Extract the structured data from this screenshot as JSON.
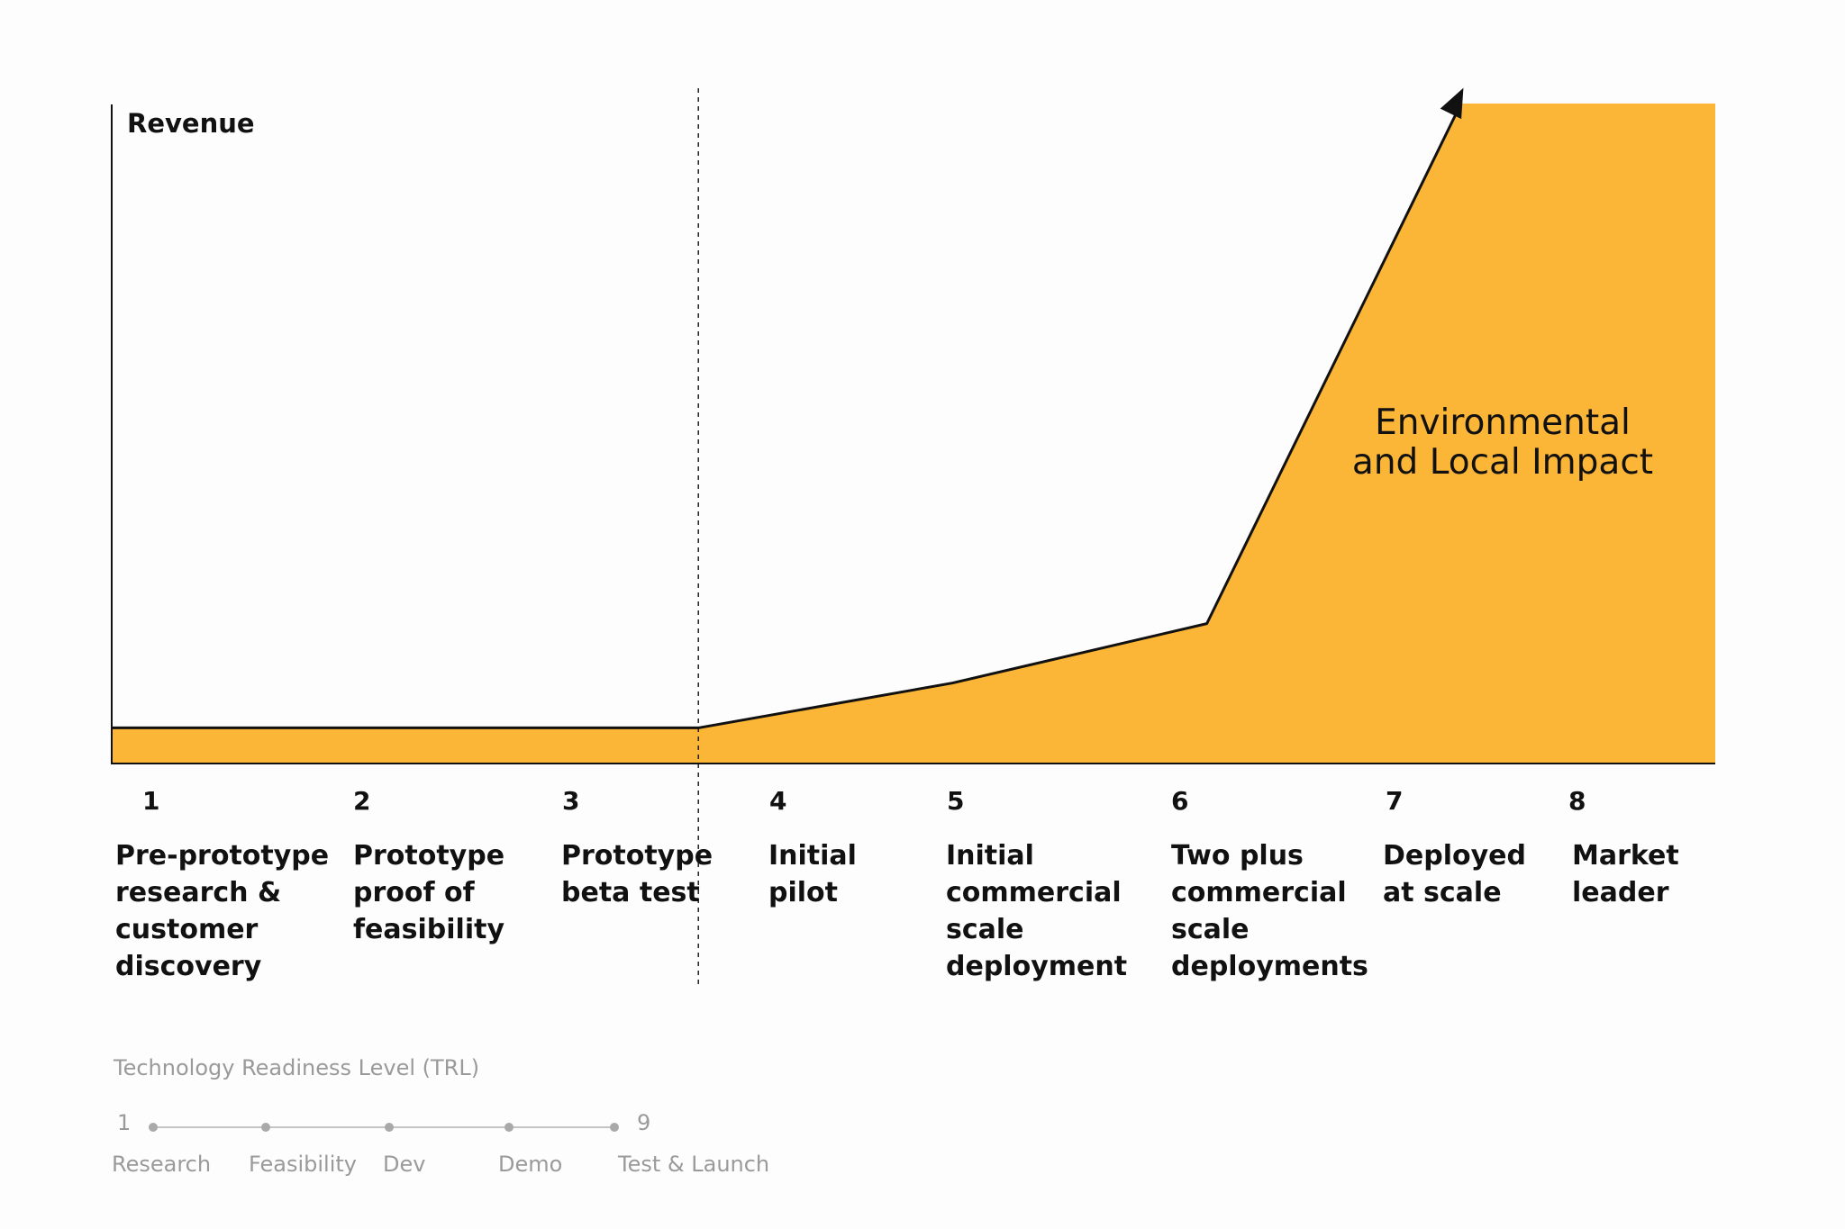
{
  "chart_data": {
    "type": "area",
    "ylabel": "Revenue",
    "annotation": "Environmental\nand Local Impact",
    "fill_color": "#FBB537",
    "line_color": "#111111",
    "stages": [
      {
        "num": "1",
        "label": "Pre-prototype\nresearch &\ncustomer\ndiscovery"
      },
      {
        "num": "2",
        "label": "Prototype\nproof of\nfeasibility"
      },
      {
        "num": "3",
        "label": "Prototype\nbeta test"
      },
      {
        "num": "4",
        "label": "Initial\npilot"
      },
      {
        "num": "5",
        "label": "Initial\ncommercial\nscale\ndeployment"
      },
      {
        "num": "6",
        "label": "Two plus\ncommercial\nscale\ndeployments"
      },
      {
        "num": "7",
        "label": "Deployed\nat scale"
      },
      {
        "num": "8",
        "label": "Market\nleader"
      }
    ],
    "line_points": [
      {
        "x": 0,
        "y": 0.054
      },
      {
        "x": 3.0,
        "y": 0.054
      },
      {
        "x": 4.3,
        "y": 0.122
      },
      {
        "x": 5.6,
        "y": 0.212
      },
      {
        "x": 6.9,
        "y": 1.0
      }
    ],
    "fill_extends_to_x": 8.2,
    "fill_top_y": 1.0,
    "divider_at_x": 3.0,
    "ylim": [
      0,
      1
    ],
    "xlim": [
      0,
      8.2
    ]
  },
  "trl": {
    "title": "Technology Readiness Level (TRL)",
    "start": "1",
    "end": "9",
    "labels": [
      "Research",
      "Feasibility",
      "Dev",
      "Demo",
      "Test & Launch"
    ]
  }
}
